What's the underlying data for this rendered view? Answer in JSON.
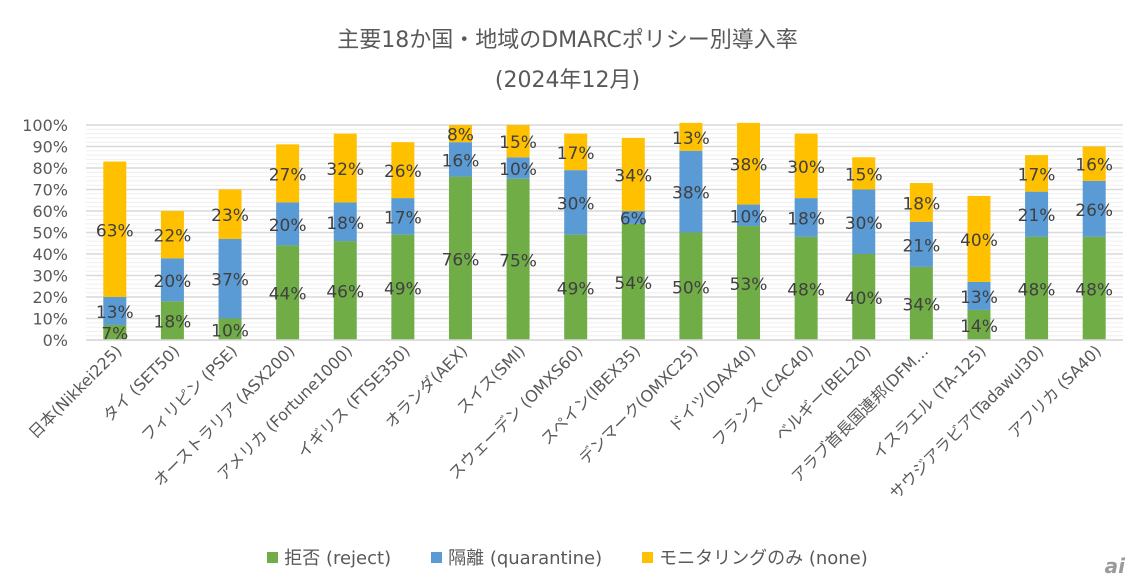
{
  "chart_data": {
    "type": "bar",
    "stacked": true,
    "title": "主要18か国・地域のDMARCポリシー別導入率",
    "subtitle": "(2024年12月)",
    "xlabel": "",
    "ylabel": "",
    "ylim": [
      0,
      100
    ],
    "y_ticks": [
      "0%",
      "10%",
      "20%",
      "30%",
      "40%",
      "50%",
      "60%",
      "70%",
      "80%",
      "90%",
      "100%"
    ],
    "grid": true,
    "legend_position": "bottom",
    "categories": [
      "日本(Nikkei225)",
      "タイ (SET50)",
      "フィリピン (PSE)",
      "オーストラリア (ASX200)",
      "アメリカ (Fortune1000)",
      "イギリス (FTSE350)",
      "オランダ(AEX)",
      "スイス(SMI)",
      "スウェーデン (OMXS60)",
      "スペイン(IBEX35)",
      "デンマーク(OMXC25)",
      "ドイツ(DAX40)",
      "フランス (CAC40)",
      "ベルギー(BEL20)",
      "アラブ首長国連邦(DFM…",
      "イスラエル (TA-125)",
      "サウジアラビア(Tadawul30)",
      "アフリカ (SA40)"
    ],
    "series": [
      {
        "name": "拒否 (reject)",
        "color": "#70AD47",
        "values": [
          7,
          18,
          10,
          44,
          46,
          49,
          76,
          75,
          49,
          54,
          50,
          53,
          48,
          40,
          34,
          14,
          48,
          48
        ]
      },
      {
        "name": "隔離 (quarantine)",
        "color": "#5B9BD5",
        "values": [
          13,
          20,
          37,
          20,
          18,
          17,
          16,
          10,
          30,
          6,
          38,
          10,
          18,
          30,
          21,
          13,
          21,
          26
        ]
      },
      {
        "name": "モニタリングのみ (none)",
        "color": "#FFC000",
        "values": [
          63,
          22,
          23,
          27,
          32,
          26,
          8,
          15,
          17,
          34,
          13,
          38,
          30,
          15,
          18,
          40,
          17,
          16
        ]
      }
    ],
    "value_label_suffix": "%"
  },
  "watermark": "ai"
}
